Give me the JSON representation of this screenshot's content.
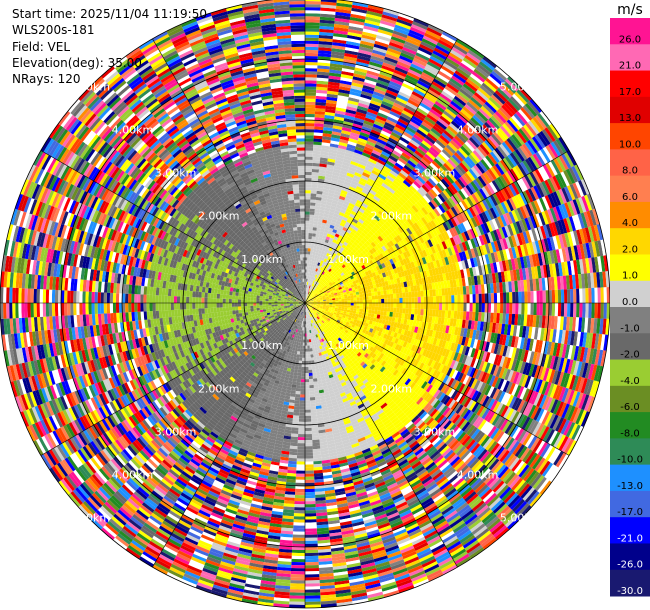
{
  "meta": {
    "start_time": "Start time: 2025/11/04 11:19:50",
    "instrument": "WLS200s-181",
    "field": "Field: VEL",
    "elevation": "Elevation(deg): 35.00",
    "nrays": "NRays: 120"
  },
  "chart_data": {
    "type": "heatmap",
    "projection": "polar-ppi",
    "field": "VEL",
    "units": "m/s",
    "n_rays": 120,
    "elevation_deg": 35.0,
    "range_rings_km": [
      1,
      2,
      3,
      4,
      5
    ],
    "ring_labels": [
      "1.00km",
      "2.00km",
      "3.00km",
      "4.00km",
      "5.00km"
    ],
    "max_range_km": 5.0,
    "velocity_pattern": {
      "toward_sector_center_deg": 270,
      "away_sector_center_deg": 90,
      "coherent_max_range_km": 2.6,
      "noise_beyond_km": 2.6
    },
    "colorbar": {
      "label": "m/s",
      "min": -30.0,
      "max": 30.0,
      "tick_labels": [
        "26.0",
        "21.0",
        "17.0",
        "13.0",
        "10.0",
        "8.0",
        "6.0",
        "4.0",
        "2.0",
        "1.0",
        "0.0",
        "-1.0",
        "-2.0",
        "-4.0",
        "-6.0",
        "-8.0",
        "-10.0",
        "-13.0",
        "-17.0",
        "-21.0",
        "-26.0",
        "-30.0"
      ],
      "colors": [
        "#ff1493",
        "#ff69b4",
        "#ff0000",
        "#e00000",
        "#ff4500",
        "#ff6347",
        "#ff7f50",
        "#ff8c00",
        "#ffd700",
        "#ffff00",
        "#d0d0d0",
        "#808080",
        "#696969",
        "#9acd32",
        "#6b8e23",
        "#228b22",
        "#2e8b57",
        "#1e90ff",
        "#4169e1",
        "#0000ff",
        "#00008b",
        "#191970"
      ]
    }
  }
}
